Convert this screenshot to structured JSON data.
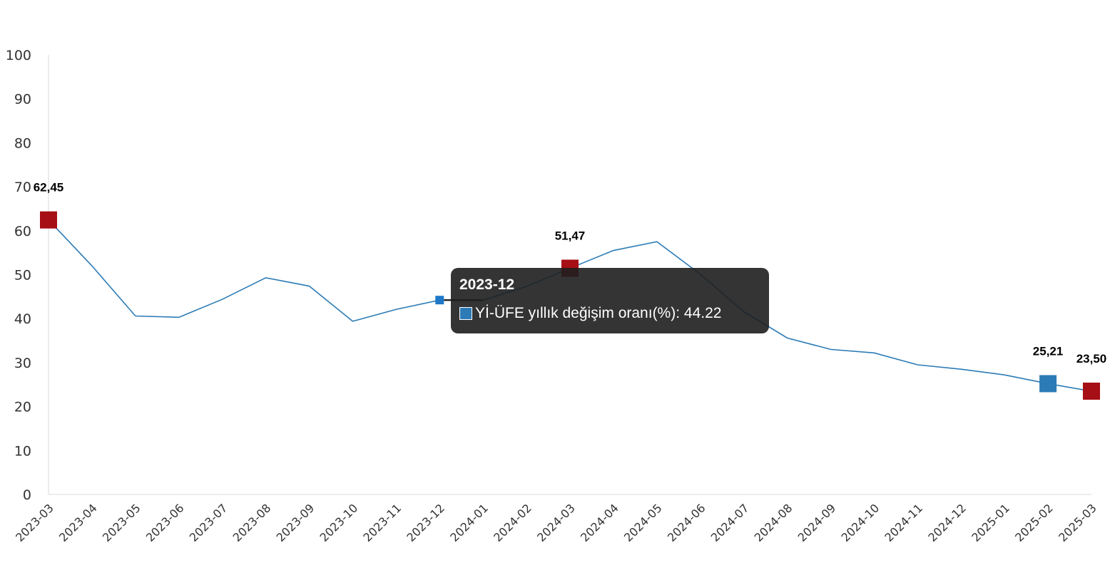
{
  "chart_data": {
    "type": "line",
    "categories": [
      "2023-03",
      "2023-04",
      "2023-05",
      "2023-06",
      "2023-07",
      "2023-08",
      "2023-09",
      "2023-10",
      "2023-11",
      "2023-12",
      "2024-01",
      "2024-02",
      "2024-03",
      "2024-04",
      "2024-05",
      "2024-06",
      "2024-07",
      "2024-08",
      "2024-09",
      "2024-10",
      "2024-11",
      "2024-12",
      "2025-01",
      "2025-02",
      "2025-03"
    ],
    "series": [
      {
        "name": "Yİ-ÜFE yıllık değişim oranı(%)",
        "values": [
          62.45,
          52.0,
          40.6,
          40.3,
          44.4,
          49.3,
          47.4,
          39.4,
          42.1,
          44.22,
          44.2,
          47.3,
          51.47,
          55.5,
          57.5,
          50.1,
          41.6,
          35.6,
          33.0,
          32.2,
          29.5,
          28.5,
          27.2,
          25.21,
          23.5
        ]
      }
    ],
    "ylim": [
      0,
      100
    ],
    "yticks": [
      0,
      10,
      20,
      30,
      40,
      50,
      60,
      70,
      80,
      90,
      100
    ],
    "grid": false,
    "colors": {
      "line": "#2c7bb6",
      "marker_red": "#a50f15",
      "marker_blue": "#2c7bb6"
    },
    "data_labels": [
      {
        "category": "2023-03",
        "text": "62,45",
        "marker": "red"
      },
      {
        "category": "2024-03",
        "text": "51,47",
        "marker": "red"
      },
      {
        "category": "2025-02",
        "text": "25,21",
        "marker": "blue"
      },
      {
        "category": "2025-03",
        "text": "23,50",
        "marker": "red"
      }
    ],
    "highlighted": {
      "category": "2023-12",
      "value": 44.22
    }
  },
  "tooltip": {
    "title": "2023-12",
    "series_label": "Yİ-ÜFE yıllık değişim oranı(%)",
    "value_text": ": 44.22",
    "swatch_color": "#2c7bb6"
  }
}
